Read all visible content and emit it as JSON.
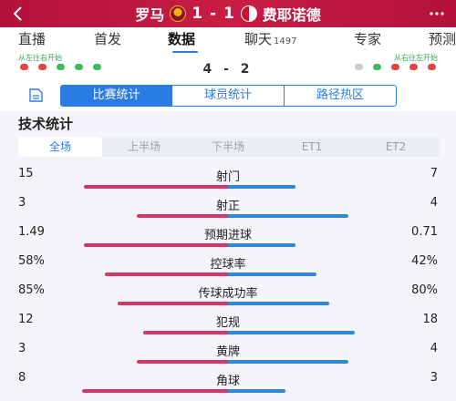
{
  "header": {
    "home_team": "罗马",
    "away_team": "费耶诺德",
    "score": "1 - 1"
  },
  "tabs": [
    {
      "label": "直播"
    },
    {
      "label": "首发"
    },
    {
      "label": "数据"
    },
    {
      "label": "聊天",
      "count": "1497"
    },
    {
      "label": "专家"
    },
    {
      "label": "预测"
    }
  ],
  "lineup": {
    "hint_left": "从左往右开始",
    "hint_right": "从右往左开始",
    "score": "4 - 2",
    "home_dots": [
      "red",
      "red",
      "green",
      "green",
      "green"
    ],
    "away_dots": [
      "none",
      "green",
      "red",
      "red",
      "red"
    ]
  },
  "segments": [
    "比赛统计",
    "球员统计",
    "路径热区"
  ],
  "section_title": "技术统计",
  "periods": [
    "全场",
    "上半场",
    "下半场",
    "ET1",
    "ET2"
  ],
  "stats": [
    {
      "label": "射门",
      "home": "15",
      "away": "7",
      "home_share": 0.68,
      "away_share": 0.32
    },
    {
      "label": "射正",
      "home": "3",
      "away": "4",
      "home_share": 0.43,
      "away_share": 0.57
    },
    {
      "label": "预期进球",
      "home": "1.49",
      "away": "0.71",
      "home_share": 0.68,
      "away_share": 0.32
    },
    {
      "label": "控球率",
      "home": "58%",
      "away": "42%",
      "home_share": 0.58,
      "away_share": 0.42
    },
    {
      "label": "传球成功率",
      "home": "85%",
      "away": "80%",
      "home_share": 0.52,
      "away_share": 0.48
    },
    {
      "label": "犯规",
      "home": "12",
      "away": "18",
      "home_share": 0.4,
      "away_share": 0.6
    },
    {
      "label": "黄牌",
      "home": "3",
      "away": "4",
      "home_share": 0.43,
      "away_share": 0.57
    },
    {
      "label": "角球",
      "home": "8",
      "away": "3",
      "home_share": 0.73,
      "away_share": 0.27
    }
  ],
  "colors": {
    "header": "#c01a40",
    "accent": "#2b7be5",
    "home_bar": "#d7356a",
    "away_bar": "#2f86e6"
  }
}
